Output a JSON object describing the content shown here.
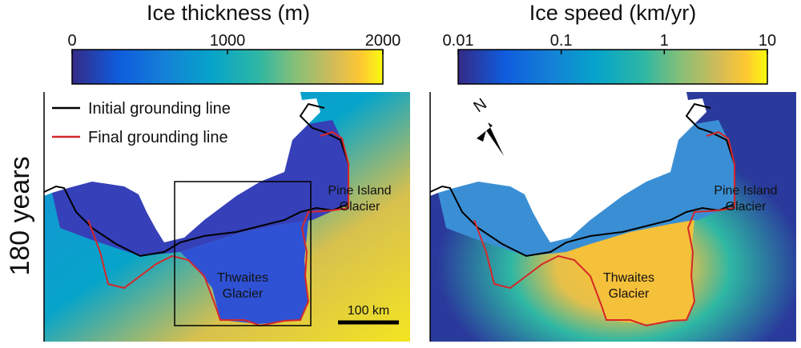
{
  "row_label": "180 years",
  "panels": [
    {
      "colorbar": {
        "title": "Ice thickness (m)",
        "lim": [
          0,
          2000
        ],
        "ticks": [
          0,
          1000,
          2000
        ],
        "log": false
      },
      "legend": [
        {
          "name": "Initial grounding line",
          "color": "#000000"
        },
        {
          "name": "Final grounding line",
          "color": "#d62728"
        }
      ],
      "labels": {
        "pine_island": [
          "Pine Island",
          "Glacier"
        ],
        "thwaites": [
          "Thwaites",
          "Glacier"
        ]
      },
      "scale_bar": "100 km"
    },
    {
      "colorbar": {
        "title": "Ice speed (km/yr)",
        "lim": [
          0.01,
          10
        ],
        "ticks": [
          0.01,
          0.1,
          1,
          10
        ],
        "log": true
      },
      "north": "N",
      "labels": {
        "pine_island": [
          "Pine Island",
          "Glacier"
        ],
        "thwaites": [
          "Thwaites",
          "Glacier"
        ]
      }
    }
  ]
}
